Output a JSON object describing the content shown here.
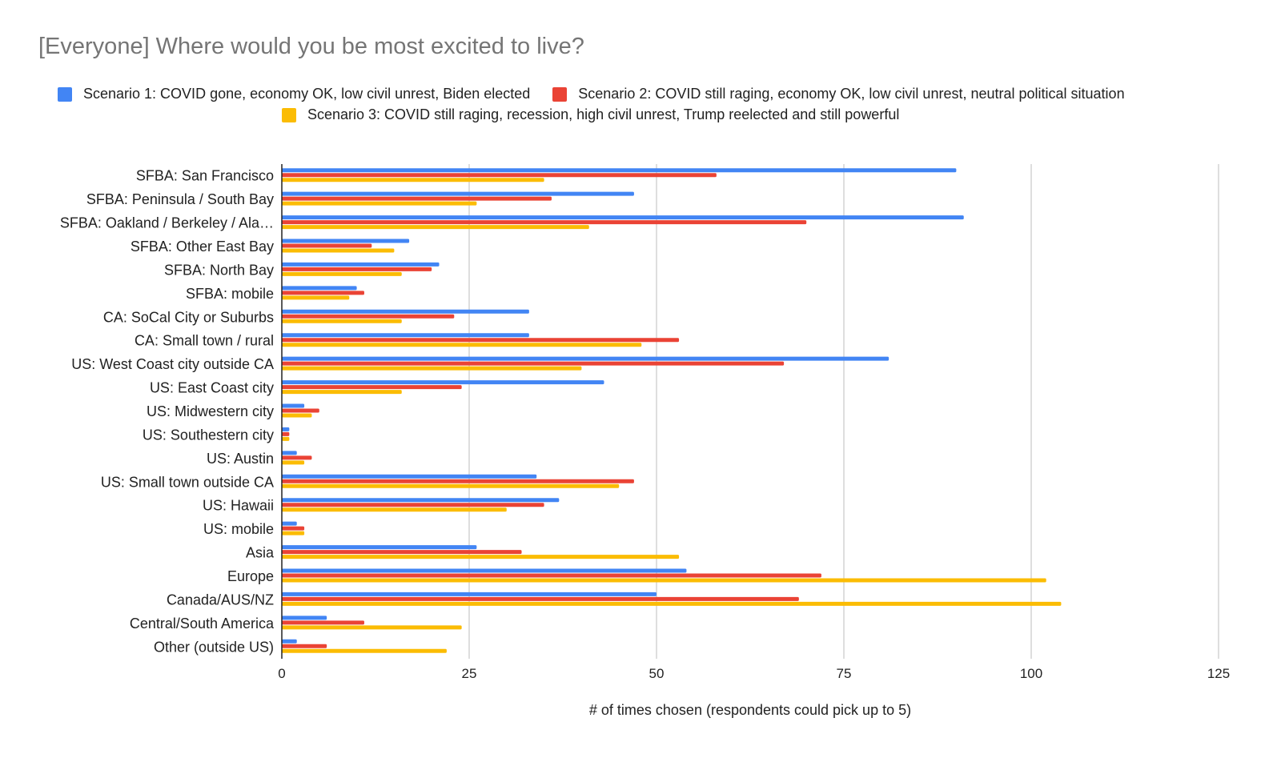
{
  "chart_data": {
    "type": "bar",
    "orientation": "horizontal",
    "title": "[Everyone] Where would you be most excited to live?",
    "xlabel": "# of times chosen (respondents could pick up to 5)",
    "ylabel": "",
    "xlim": [
      0,
      125
    ],
    "xticks": [
      0,
      25,
      50,
      75,
      100,
      125
    ],
    "grid": true,
    "legend_position": "top",
    "categories": [
      "SFBA: San Francisco",
      "SFBA: Peninsula / South Bay",
      "SFBA: Oakland / Berkeley / Ala…",
      "SFBA: Other East Bay",
      "SFBA: North Bay",
      "SFBA: mobile",
      "CA: SoCal City or Suburbs",
      "CA: Small town / rural",
      "US: West Coast city outside CA",
      "US: East Coast city",
      "US: Midwestern city",
      "US: Southestern city",
      "US: Austin",
      "US: Small town outside CA",
      "US: Hawaii",
      "US: mobile",
      "Asia",
      "Europe",
      "Canada/AUS/NZ",
      "Central/South America",
      "Other (outside US)"
    ],
    "series": [
      {
        "name": "Scenario 1: COVID gone, economy OK, low civil unrest, Biden elected",
        "color": "#4285F4",
        "values": [
          90,
          47,
          91,
          17,
          21,
          10,
          33,
          33,
          81,
          43,
          3,
          1,
          2,
          34,
          37,
          2,
          26,
          54,
          50,
          6,
          2
        ]
      },
      {
        "name": "Scenario 2: COVID still raging, economy OK, low civil unrest, neutral political situation",
        "color": "#EA4335",
        "values": [
          58,
          36,
          70,
          12,
          20,
          11,
          23,
          53,
          67,
          24,
          5,
          1,
          4,
          47,
          35,
          3,
          32,
          72,
          69,
          11,
          6
        ]
      },
      {
        "name": "Scenario 3: COVID still raging, recession, high civil unrest, Trump reelected and still powerful",
        "color": "#FBBC04",
        "values": [
          35,
          26,
          41,
          15,
          16,
          9,
          16,
          48,
          40,
          16,
          4,
          1,
          3,
          45,
          30,
          3,
          53,
          102,
          104,
          24,
          22
        ]
      }
    ]
  }
}
